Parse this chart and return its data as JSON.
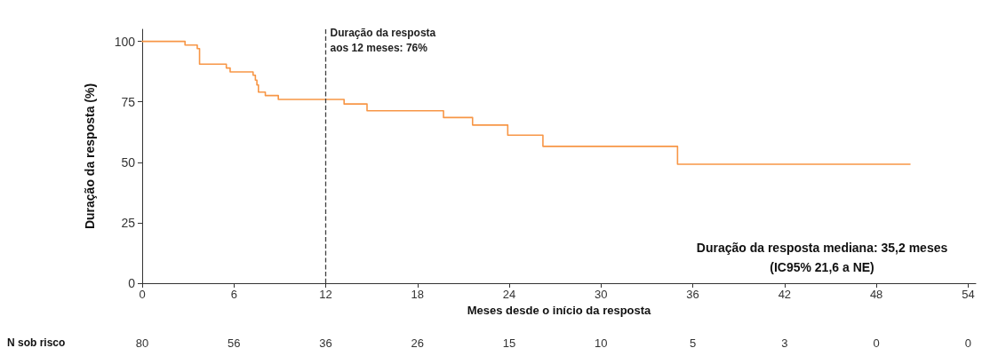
{
  "chart_data": {
    "type": "step",
    "xlabel": "Meses desde o início da resposta",
    "ylabel": "Duração da resposta (%)",
    "xlim": [
      0,
      54.5
    ],
    "xticks": [
      0,
      6,
      12,
      18,
      24,
      30,
      36,
      42,
      48,
      54
    ],
    "ylim": [
      0,
      105
    ],
    "yticks": [
      0,
      25,
      50,
      75,
      100
    ],
    "grid": false,
    "marker": "none",
    "line_style": "solid",
    "series": [
      {
        "color": "#f79646",
        "x": [
          0,
          2.8,
          3.6,
          3.75,
          5.5,
          5.75,
          7.25,
          7.4,
          7.5,
          7.6,
          8.05,
          8.9,
          13.2,
          14.7,
          19.7,
          21.6,
          23.9,
          26.2,
          35.0,
          50.2
        ],
        "values": [
          100,
          98.5,
          97,
          90.6,
          89,
          87.4,
          86,
          84,
          82,
          79,
          77.6,
          76,
          74.1,
          71.3,
          68.5,
          65.4,
          61.2,
          56.6,
          49.2,
          49.2
        ]
      }
    ],
    "ref_lines": [
      {
        "axis": "x",
        "value": 12,
        "label": "Duração da resposta\naos 12 meses: 76%",
        "color": "#404040",
        "line_style": "dashed"
      }
    ],
    "annotations": [
      "Duração da resposta mediana: 35,2 meses\n(IC95% 21,6 a NE)",
      "N sob risco",
      "80",
      "56",
      "36",
      "26",
      "15",
      "10",
      "5",
      "3",
      "0",
      "0"
    ]
  }
}
